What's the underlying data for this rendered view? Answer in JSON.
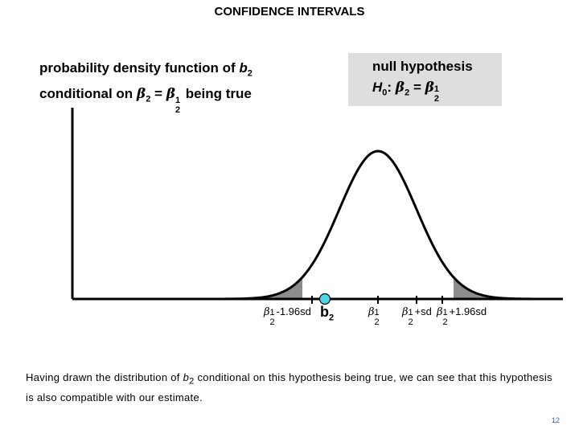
{
  "title": "CONFIDENCE INTERVALS",
  "pdf_label": {
    "line1_prefix": "probability density function of ",
    "b": "b",
    "b_sub": "2",
    "line2_prefix": "conditional on ",
    "beta": "β",
    "beta_sub": "2",
    "equals": " = ",
    "beta_sup": "1",
    "line2_suffix": " being true"
  },
  "hypothesis": {
    "line1": "null hypothesis",
    "H": "H",
    "H_sub": "0",
    "colon": ": ",
    "beta": "β",
    "beta_sub": "2",
    "equals": " = ",
    "beta_sup": "1"
  },
  "tick_labels": {
    "lower_196": "-1.96sd",
    "center": "",
    "plus_sd": "+sd",
    "plus_196": "+1.96sd",
    "beta": "β",
    "sub": "2",
    "sup": "1"
  },
  "b2_label": {
    "b": "b",
    "sub": "2"
  },
  "caption": {
    "part1": "Having drawn the distribution of ",
    "b": "b",
    "sub": "2",
    "part2": " conditional on this hypothesis being true, we can see that this hypothesis is also compatible with our estimate."
  },
  "page_number": "12",
  "colors": {
    "tail_fill": "#8c8c8c",
    "estimate_marker": "#4dd6e6",
    "hyp_box": "#dedede"
  }
}
